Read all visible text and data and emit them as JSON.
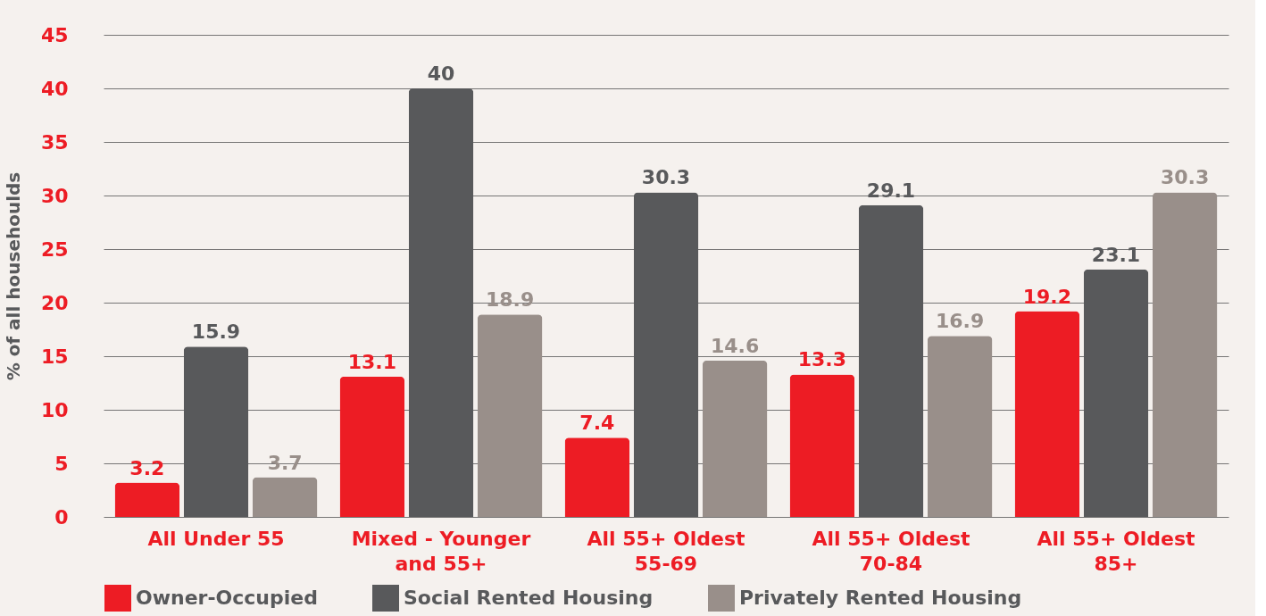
{
  "chart_data": {
    "type": "bar",
    "ylabel": "% of all househoulds",
    "categories": [
      "All Under 55",
      "Mixed - Younger and 55+",
      "All 55+ Oldest 55-69",
      "All 55+ Oldest 70-84",
      "All 55+ Oldest 85+"
    ],
    "series": [
      {
        "name": "Owner-Occupied",
        "color": "#ed1c24",
        "values": [
          3.2,
          13.1,
          7.4,
          13.3,
          19.2
        ]
      },
      {
        "name": "Social Rented Housing",
        "color": "#58595b",
        "values": [
          15.9,
          40,
          30.3,
          29.1,
          23.1
        ]
      },
      {
        "name": "Privately Rented Housing",
        "color": "#998f8a",
        "values": [
          3.7,
          18.9,
          14.6,
          16.9,
          30.3
        ]
      }
    ],
    "ylim": [
      0,
      45
    ],
    "yticks": [
      0,
      5,
      10,
      15,
      20,
      25,
      30,
      35,
      40,
      45
    ],
    "grid": "y",
    "legend": "bottom",
    "data_labels": true
  }
}
